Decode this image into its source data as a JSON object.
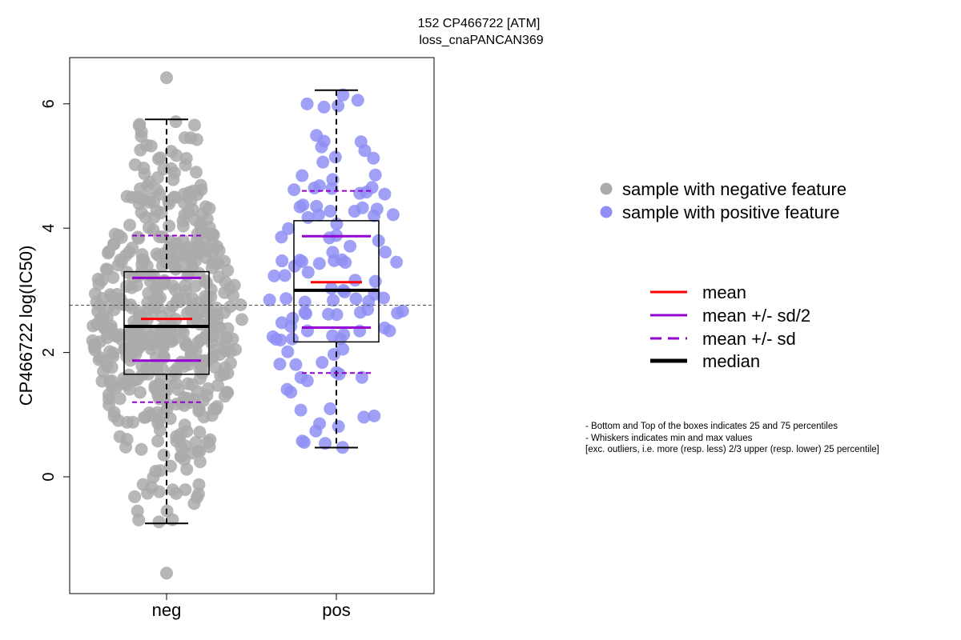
{
  "colors": {
    "neg_points": "#aaaaaa",
    "pos_points": "#8f8ff5",
    "mean": "#ff0000",
    "sd": "#9400d3",
    "median": "#000000",
    "box": "#000000",
    "reference_line": "#555555"
  },
  "chart_data": {
    "type": "boxplot",
    "title": [
      "152 CP466722 [ATM]",
      "loss_cnaPANCAN369"
    ],
    "ylabel": "CP466722 log(IC50)",
    "xlabel": "",
    "ylim": [
      -1.9,
      6.7
    ],
    "yticks": [
      0,
      2,
      4,
      6
    ],
    "reference_line_y": 2.76,
    "groups": [
      {
        "name": "neg",
        "stats": {
          "whisker_low": -0.75,
          "q1": 1.65,
          "median": 2.42,
          "q3": 3.3,
          "whisker_high": 5.75,
          "mean": 2.54,
          "mean_minus_half_sd": 1.87,
          "mean_plus_half_sd": 3.2,
          "mean_minus_sd": 1.2,
          "mean_plus_sd": 3.88
        },
        "n_points": 520,
        "range": [
          -1.55,
          6.42
        ],
        "outliers": [
          6.42,
          -1.55
        ]
      },
      {
        "name": "pos",
        "stats": {
          "whisker_low": 0.47,
          "q1": 2.17,
          "median": 3.0,
          "q3": 4.12,
          "whisker_high": 6.22,
          "mean": 3.13,
          "mean_minus_half_sd": 2.4,
          "mean_plus_half_sd": 3.87,
          "mean_minus_sd": 1.67,
          "mean_plus_sd": 4.6
        },
        "n_points": 115,
        "range": [
          0.47,
          6.22
        ]
      }
    ],
    "legend_points": [
      {
        "label": "sample with negative feature",
        "color": "#aaaaaa"
      },
      {
        "label": "sample with positive feature",
        "color": "#8f8ff5"
      }
    ],
    "legend_lines": [
      {
        "label": "mean",
        "color": "#ff0000",
        "style": "solid"
      },
      {
        "label": "mean +/- sd/2",
        "color": "#9400d3",
        "style": "solid"
      },
      {
        "label": "mean +/- sd",
        "color": "#9400d3",
        "style": "dashed"
      },
      {
        "label": "median",
        "color": "#000000",
        "style": "solid-thick"
      }
    ],
    "notes": [
      "- Bottom and Top of the boxes indicates 25 and 75 percentiles",
      "- Whiskers indicates min and max values",
      "[exc. outliers, i.e. more (resp. less) 2/3 upper (resp. lower) 25 percentile]"
    ]
  }
}
